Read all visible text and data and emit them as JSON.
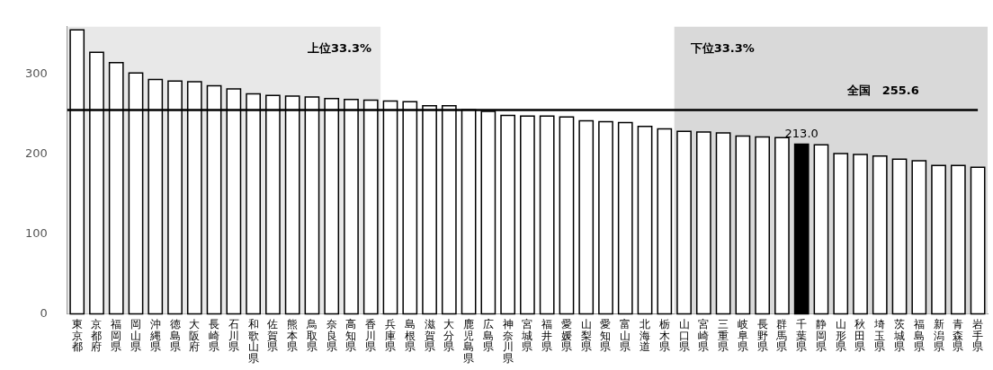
{
  "chart_data": {
    "type": "bar",
    "categories": [
      "東京都",
      "京都府",
      "福岡県",
      "岡山県",
      "沖縄県",
      "徳島県",
      "大阪府",
      "長崎県",
      "石川県",
      "和歌山県",
      "佐賀県",
      "熊本県",
      "鳥取県",
      "奈良県",
      "高知県",
      "香川県",
      "兵庫県",
      "島根県",
      "滋賀県",
      "大分県",
      "鹿児島県",
      "広島県",
      "神奈川県",
      "宮城県",
      "福井県",
      "愛媛県",
      "山梨県",
      "愛知県",
      "富山県",
      "北海道",
      "栃木県",
      "山口県",
      "宮崎県",
      "三重県",
      "岐阜県",
      "長野県",
      "群馬県",
      "千葉県",
      "静岡県",
      "山形県",
      "秋田県",
      "埼玉県",
      "茨城県",
      "福島県",
      "新潟県",
      "青森県",
      "岩手県"
    ],
    "values": [
      356,
      328,
      315,
      302,
      294,
      292,
      291,
      286,
      282,
      276,
      274,
      273,
      272,
      270,
      269,
      268,
      267,
      266,
      261,
      261,
      256,
      254,
      249,
      248,
      248,
      247,
      242,
      241,
      240,
      235,
      232,
      229,
      228,
      227,
      223,
      222,
      221,
      213.0,
      212,
      201,
      200,
      198,
      194,
      192,
      186,
      186,
      184
    ],
    "colors": [
      "#ffffff",
      "#ffffff",
      "#ffffff",
      "#ffffff",
      "#ffffff",
      "#ffffff",
      "#ffffff",
      "#ffffff",
      "#ffffff",
      "#ffffff",
      "#ffffff",
      "#ffffff",
      "#ffffff",
      "#ffffff",
      "#ffffff",
      "#ffffff",
      "#ffffff",
      "#ffffff",
      "#ffffff",
      "#ffffff",
      "#ffffff",
      "#ffffff",
      "#ffffff",
      "#ffffff",
      "#ffffff",
      "#ffffff",
      "#ffffff",
      "#ffffff",
      "#ffffff",
      "#ffffff",
      "#ffffff",
      "#ffffff",
      "#ffffff",
      "#ffffff",
      "#ffffff",
      "#ffffff",
      "#ffffff",
      "#000000",
      "#ffffff",
      "#ffffff",
      "#ffffff",
      "#ffffff",
      "#ffffff",
      "#ffffff",
      "#ffffff",
      "#ffffff",
      "#ffffff"
    ],
    "value_labels": [
      null,
      null,
      null,
      null,
      null,
      null,
      null,
      null,
      null,
      null,
      null,
      null,
      null,
      null,
      null,
      null,
      null,
      null,
      null,
      null,
      null,
      null,
      null,
      null,
      null,
      null,
      null,
      null,
      null,
      null,
      null,
      null,
      null,
      null,
      null,
      null,
      null,
      "213.0",
      null,
      null,
      null,
      null,
      null,
      null,
      null,
      null,
      null
    ],
    "ylim": [
      0,
      360
    ],
    "yticks": [
      0,
      100,
      200,
      300
    ],
    "grid": false,
    "legend": false,
    "ref_lines": [
      {
        "axis": "y",
        "value": 255.6,
        "label": "全国　255.6",
        "color": "#000000"
      }
    ],
    "bands": [
      {
        "axis": "x",
        "from": "東京都",
        "to": "香川県",
        "label": "上位33.3%",
        "color": "#e8e8e8"
      },
      {
        "axis": "x",
        "from": "山口県",
        "to": "岩手県",
        "label": "下位33.3%",
        "color": "#d9d9d9"
      }
    ]
  }
}
